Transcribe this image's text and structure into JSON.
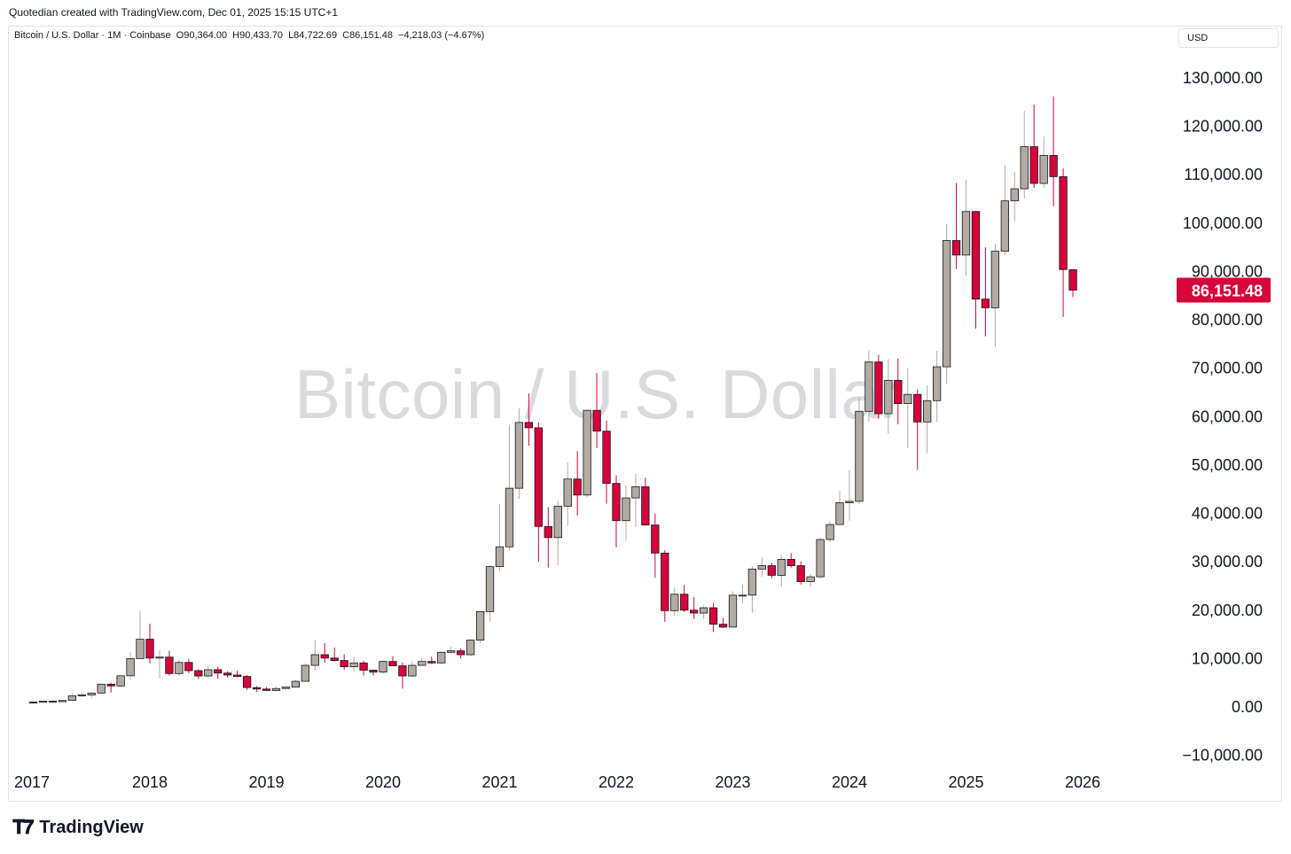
{
  "header": {
    "credit": "Quotedian created with TradingView.com, Dec 01, 2025 15:15 UTC+1"
  },
  "legend": {
    "symbol": "Bitcoin / U.S. Dollar · 1M · Coinbase",
    "open": "O90,364.00",
    "high": "H90,433.70",
    "low": "L84,722.69",
    "close": "C86,151.48",
    "change": "−4,218.03 (−4.67%)"
  },
  "currency": "USD",
  "watermark": "Bitcoin / U.S. Dollar",
  "price_label": "86,151.48",
  "footer": {
    "brand": "TradingView"
  },
  "colors": {
    "up": "#b2aba2",
    "down": "#d6053a",
    "last_price_bg": "#d6053a",
    "axis_text": "#131722",
    "watermark": "#d9dadd"
  },
  "chart_data": {
    "type": "candlestick",
    "interval": "1M",
    "series": [
      {
        "name": "Bitcoin / U.S. Dollar",
        "start": "2017-01",
        "ohlc": [
          [
            1000,
            1150,
            800,
            980
          ],
          [
            980,
            1200,
            950,
            1190
          ],
          [
            1190,
            1350,
            900,
            1080
          ],
          [
            1080,
            1350,
            1000,
            1340
          ],
          [
            1340,
            2800,
            1300,
            2300
          ],
          [
            2300,
            2950,
            2100,
            2490
          ],
          [
            2490,
            2950,
            1850,
            2870
          ],
          [
            2870,
            4700,
            2700,
            4700
          ],
          [
            4700,
            5000,
            2980,
            4340
          ],
          [
            4340,
            6500,
            4100,
            6440
          ],
          [
            6440,
            11400,
            5500,
            10000
          ],
          [
            10000,
            19800,
            10000,
            14000
          ],
          [
            14000,
            17200,
            9000,
            10100
          ],
          [
            10100,
            11800,
            5900,
            10300
          ],
          [
            10300,
            11600,
            6500,
            6900
          ],
          [
            6900,
            9800,
            6400,
            9200
          ],
          [
            9200,
            9900,
            7000,
            7500
          ],
          [
            7500,
            7800,
            5800,
            6400
          ],
          [
            6400,
            8500,
            6000,
            7700
          ],
          [
            7700,
            8300,
            5800,
            7000
          ],
          [
            7000,
            7400,
            6100,
            6600
          ],
          [
            6600,
            7500,
            6100,
            6300
          ],
          [
            6300,
            6600,
            3500,
            4000
          ],
          [
            4000,
            4300,
            3100,
            3700
          ],
          [
            3700,
            4100,
            3300,
            3400
          ],
          [
            3400,
            4200,
            3400,
            3800
          ],
          [
            3800,
            4100,
            3700,
            4100
          ],
          [
            4100,
            5600,
            4100,
            5300
          ],
          [
            5300,
            9000,
            5300,
            8600
          ],
          [
            8600,
            13800,
            7500,
            10800
          ],
          [
            10800,
            13200,
            9100,
            10100
          ],
          [
            10100,
            12300,
            9400,
            9600
          ],
          [
            9600,
            10900,
            7700,
            8300
          ],
          [
            8300,
            10400,
            7300,
            9100
          ],
          [
            9100,
            9500,
            6500,
            7600
          ],
          [
            7600,
            7700,
            6500,
            7200
          ],
          [
            7200,
            9600,
            6900,
            9400
          ],
          [
            9400,
            10500,
            8500,
            8500
          ],
          [
            8500,
            9200,
            3800,
            6400
          ],
          [
            6400,
            9500,
            6200,
            8600
          ],
          [
            8600,
            10100,
            8600,
            9400
          ],
          [
            9400,
            10400,
            8900,
            9100
          ],
          [
            9100,
            11400,
            8900,
            11300
          ],
          [
            11300,
            12500,
            11000,
            11600
          ],
          [
            11600,
            12100,
            10000,
            10800
          ],
          [
            10800,
            14000,
            10500,
            13800
          ],
          [
            13800,
            19500,
            13200,
            19700
          ],
          [
            19700,
            29300,
            17600,
            29000
          ],
          [
            29000,
            41900,
            28100,
            33100
          ],
          [
            33100,
            58300,
            32300,
            45200
          ],
          [
            45200,
            61700,
            43000,
            58800
          ],
          [
            58800,
            64800,
            54000,
            57700
          ],
          [
            57700,
            58800,
            30000,
            37300
          ],
          [
            37300,
            41300,
            28800,
            35000
          ],
          [
            35000,
            42600,
            29300,
            41500
          ],
          [
            41500,
            50500,
            37400,
            47100
          ],
          [
            47100,
            52900,
            39600,
            43800
          ],
          [
            43800,
            61500,
            43300,
            61300
          ],
          [
            61300,
            69000,
            53500,
            57000
          ],
          [
            57000,
            59200,
            42000,
            46200
          ],
          [
            46200,
            47900,
            33000,
            38500
          ],
          [
            38500,
            45800,
            34300,
            43200
          ],
          [
            43200,
            48200,
            37200,
            45500
          ],
          [
            45500,
            47400,
            37700,
            37600
          ],
          [
            37600,
            40000,
            26700,
            31800
          ],
          [
            31800,
            32400,
            17600,
            19900
          ],
          [
            19900,
            24700,
            18800,
            23300
          ],
          [
            23300,
            25200,
            19600,
            20000
          ],
          [
            20000,
            22700,
            18200,
            19400
          ],
          [
            19400,
            21000,
            18200,
            20500
          ],
          [
            20500,
            21500,
            15500,
            17100
          ],
          [
            17100,
            18400,
            16300,
            16500
          ],
          [
            16500,
            23900,
            16500,
            23100
          ],
          [
            23100,
            25300,
            21400,
            23100
          ],
          [
            23100,
            29200,
            19500,
            28500
          ],
          [
            28500,
            31000,
            26900,
            29200
          ],
          [
            29200,
            29800,
            26600,
            27200
          ],
          [
            27200,
            31400,
            24800,
            30500
          ],
          [
            30500,
            31800,
            28800,
            29200
          ],
          [
            29200,
            30100,
            25300,
            25900
          ],
          [
            25900,
            27500,
            24900,
            26900
          ],
          [
            26900,
            35000,
            26600,
            34600
          ],
          [
            34600,
            38400,
            34100,
            37700
          ],
          [
            37700,
            44700,
            37600,
            42200
          ],
          [
            42200,
            48900,
            38500,
            42500
          ],
          [
            42500,
            63900,
            41900,
            61100
          ],
          [
            61100,
            73800,
            59000,
            71300
          ],
          [
            71300,
            72800,
            59600,
            60600
          ],
          [
            60600,
            71900,
            56500,
            67500
          ],
          [
            67500,
            72000,
            58400,
            62700
          ],
          [
            62700,
            70000,
            53500,
            64600
          ],
          [
            64600,
            65600,
            49000,
            58900
          ],
          [
            58900,
            66500,
            52500,
            63300
          ],
          [
            63300,
            73600,
            58900,
            70300
          ],
          [
            70300,
            99800,
            66800,
            96400
          ],
          [
            96400,
            108300,
            90500,
            93400
          ],
          [
            93400,
            109000,
            89200,
            102400
          ],
          [
            102400,
            102500,
            78200,
            84300
          ],
          [
            84300,
            95000,
            76600,
            82500
          ],
          [
            82500,
            95800,
            74400,
            94200
          ],
          [
            94200,
            111900,
            93400,
            104600
          ],
          [
            104600,
            110500,
            100400,
            107100
          ],
          [
            107100,
            123200,
            105100,
            115800
          ],
          [
            115800,
            124500,
            107300,
            108200
          ],
          [
            108200,
            117900,
            107300,
            114000
          ],
          [
            114000,
            126200,
            103500,
            109600
          ],
          [
            109600,
            111300,
            80600,
            90400
          ],
          [
            90364,
            90433.7,
            84722.69,
            86151.48
          ]
        ]
      }
    ],
    "x_ticks": [
      "2017",
      "2018",
      "2019",
      "2020",
      "2021",
      "2022",
      "2023",
      "2024",
      "2025",
      "2026"
    ],
    "y_ticks": [
      "130,000.00",
      "120,000.00",
      "110,000.00",
      "100,000.00",
      "90,000.00",
      "80,000.00",
      "70,000.00",
      "60,000.00",
      "50,000.00",
      "40,000.00",
      "30,000.00",
      "20,000.00",
      "10,000.00",
      "0.00",
      "−10,000.00"
    ],
    "y_tick_values": [
      130000,
      120000,
      110000,
      100000,
      90000,
      80000,
      70000,
      60000,
      50000,
      40000,
      30000,
      20000,
      10000,
      0,
      -10000
    ],
    "ylim": [
      -10000,
      130000
    ],
    "last_price": 86151.48,
    "grid": false
  }
}
